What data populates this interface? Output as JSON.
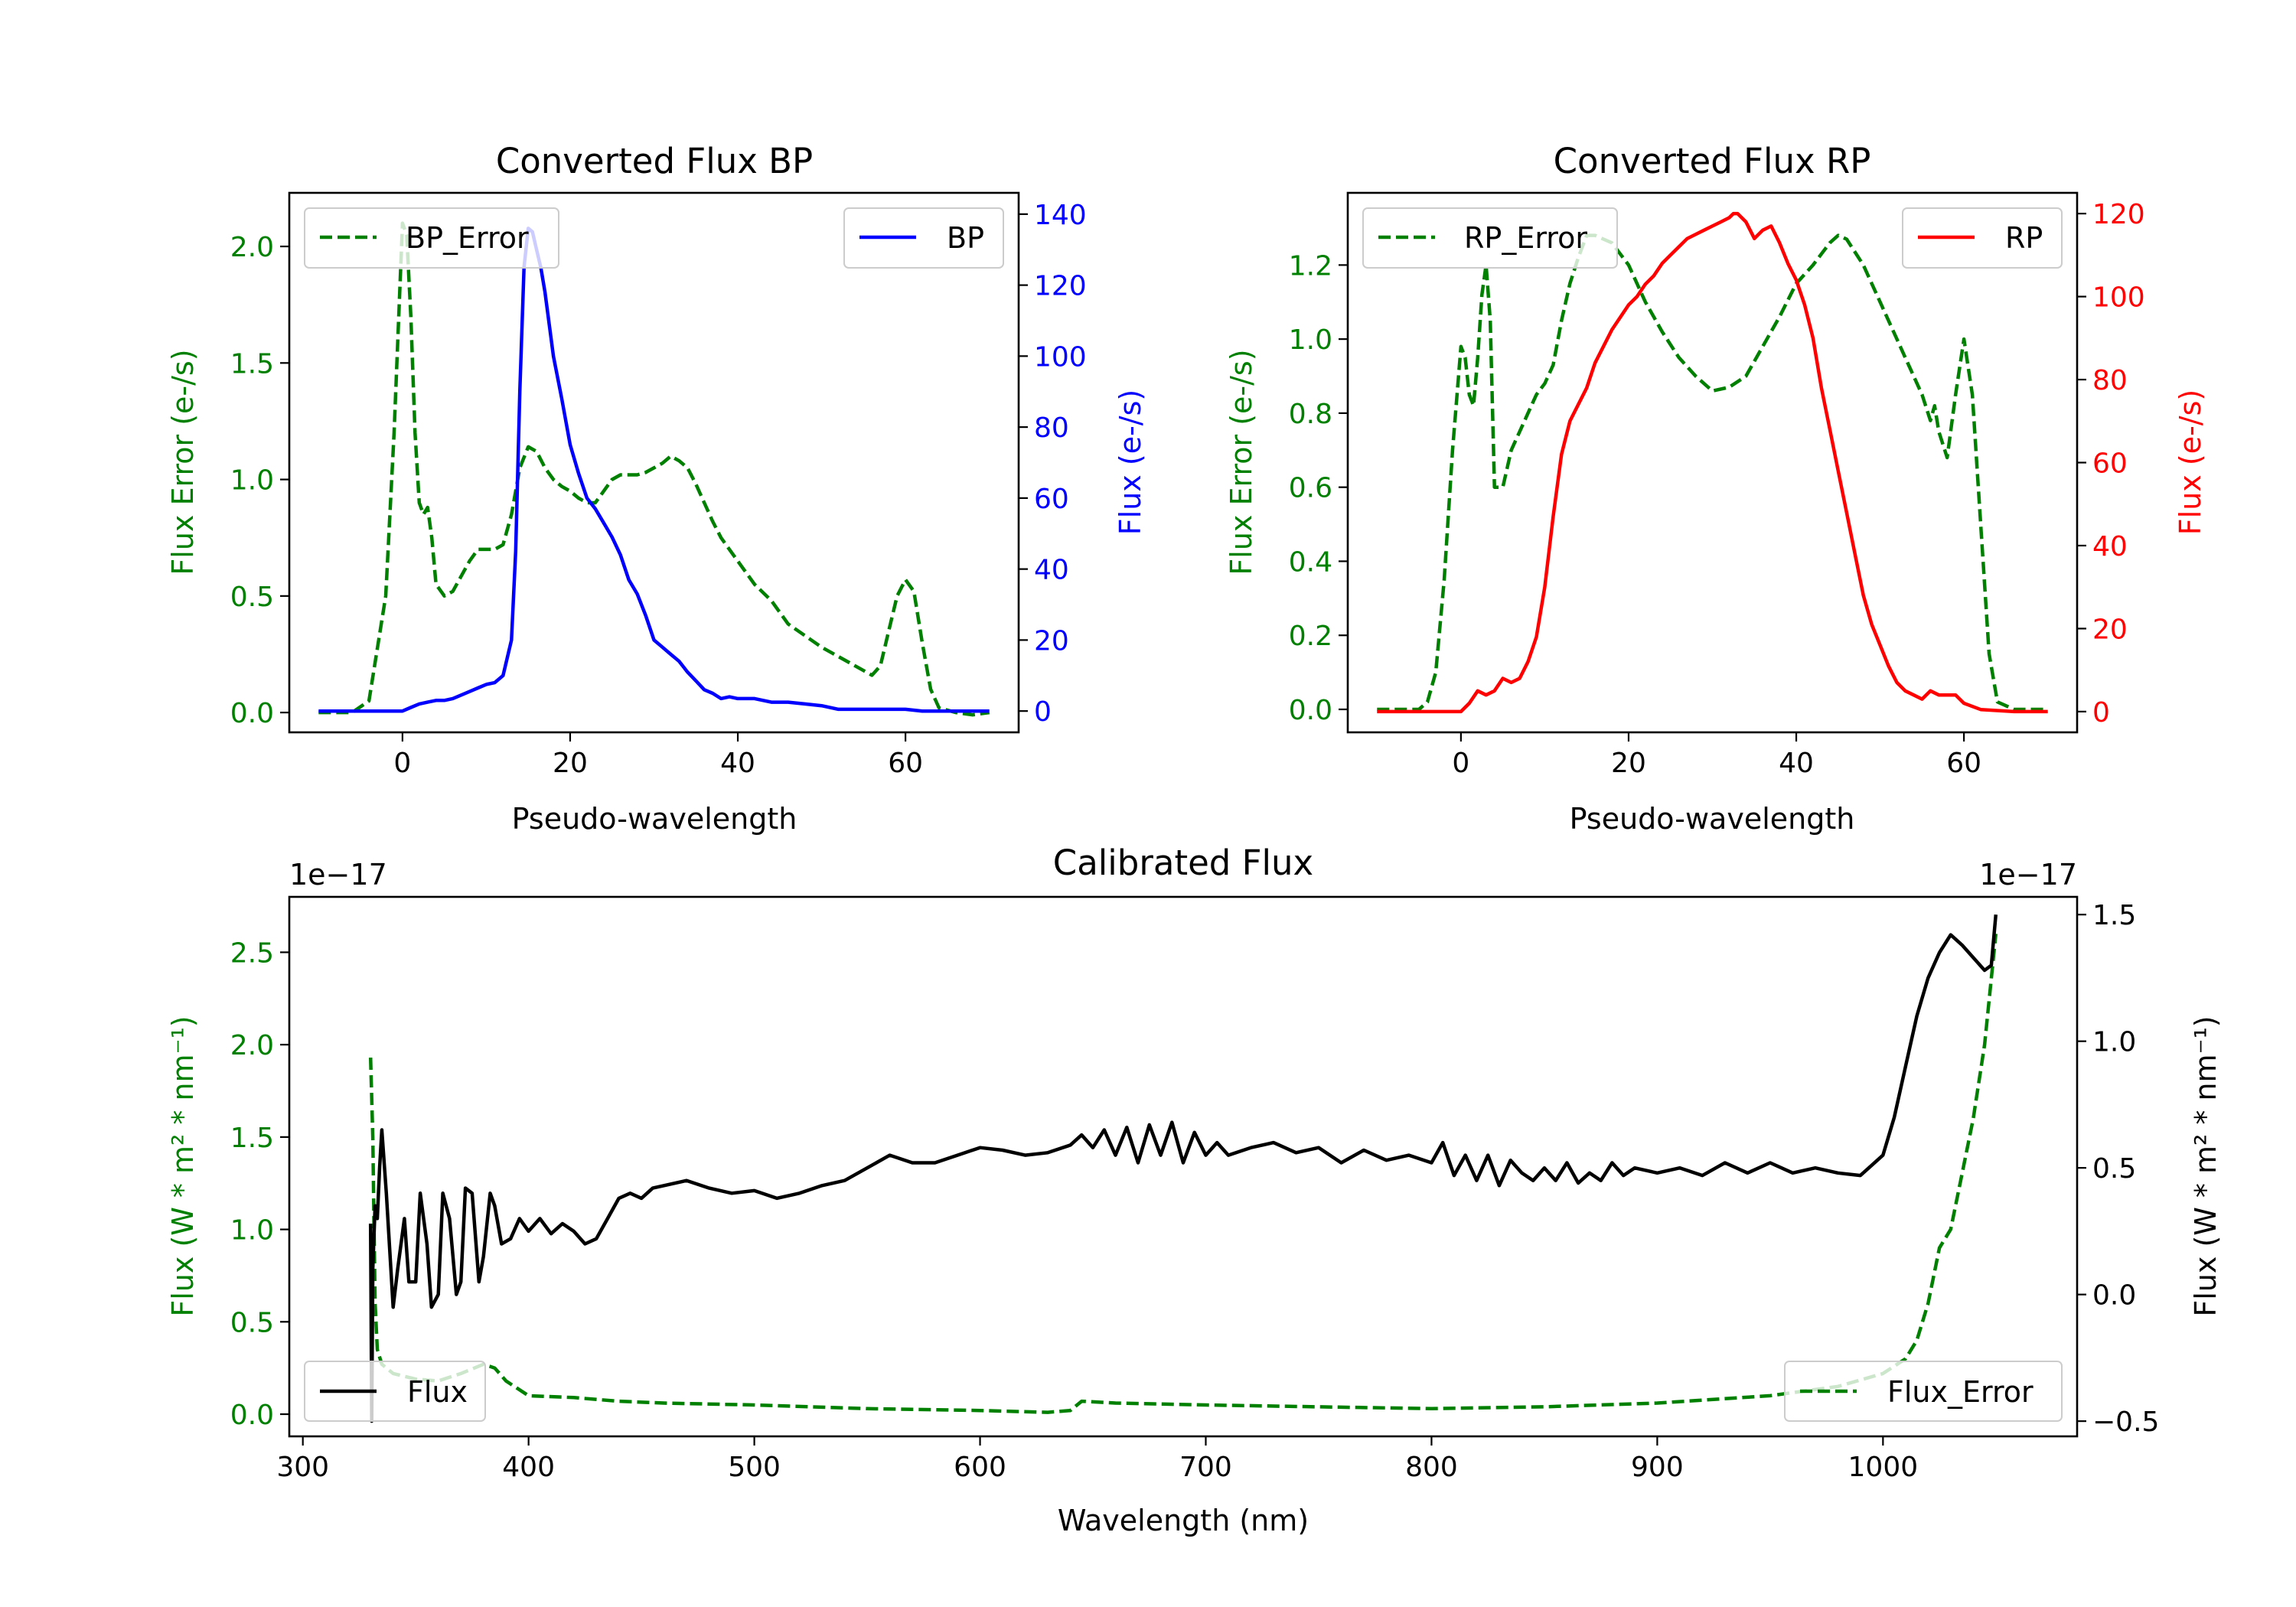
{
  "figure": {
    "colors": {
      "green": "#008000",
      "blue": "#0000ff",
      "red": "#ff0000",
      "black": "#000000"
    }
  },
  "chart_data": [
    {
      "id": "bp",
      "type": "line",
      "title": "Converted Flux BP",
      "xlabel": "Pseudo-wavelength",
      "xlim": [
        -13.5,
        73.5
      ],
      "xticks": [
        0,
        20,
        40,
        60
      ],
      "left_axis": {
        "label": "Flux Error (e-/s)",
        "color": "#008000",
        "ylim": [
          -0.085,
          2.23
        ],
        "ticks": [
          0.0,
          0.5,
          1.0,
          1.5,
          2.0
        ],
        "tick_labels": [
          "0.0",
          "0.5",
          "1.0",
          "1.5",
          "2.0"
        ]
      },
      "right_axis": {
        "label": "Flux (e-/s)",
        "color": "#0000ff",
        "ylim": [
          -6,
          146
        ],
        "ticks": [
          0,
          20,
          40,
          60,
          80,
          100,
          120,
          140
        ],
        "tick_labels": [
          "0",
          "20",
          "40",
          "60",
          "80",
          "100",
          "120",
          "140"
        ]
      },
      "series": [
        {
          "name": "BP_Error",
          "axis": "left",
          "color": "#008000",
          "dash": true,
          "x": [
            -10,
            -6,
            -4,
            -2,
            -1,
            0,
            0.5,
            1,
            1.5,
            2,
            2.5,
            3,
            3.5,
            4,
            5,
            6,
            8,
            9,
            10,
            11,
            12,
            13,
            14,
            15,
            16,
            17,
            18,
            19,
            20,
            21,
            22,
            23,
            24,
            25,
            26,
            27,
            28,
            29,
            30,
            31,
            32,
            33,
            34,
            35,
            36,
            37,
            38,
            40,
            42,
            44,
            46,
            48,
            50,
            52,
            54,
            56,
            57,
            58,
            59,
            60,
            61,
            62,
            63,
            64,
            66,
            68,
            70
          ],
          "y": [
            0.0,
            0.0,
            0.05,
            0.5,
            1.2,
            2.1,
            2.05,
            1.7,
            1.2,
            0.9,
            0.85,
            0.88,
            0.75,
            0.55,
            0.5,
            0.52,
            0.65,
            0.7,
            0.7,
            0.7,
            0.72,
            0.85,
            1.05,
            1.14,
            1.12,
            1.05,
            1.0,
            0.97,
            0.95,
            0.92,
            0.9,
            0.9,
            0.95,
            1.0,
            1.02,
            1.02,
            1.02,
            1.03,
            1.05,
            1.07,
            1.1,
            1.08,
            1.05,
            0.98,
            0.9,
            0.82,
            0.75,
            0.65,
            0.55,
            0.48,
            0.38,
            0.33,
            0.28,
            0.24,
            0.2,
            0.16,
            0.2,
            0.35,
            0.5,
            0.57,
            0.52,
            0.3,
            0.1,
            0.02,
            0.0,
            -0.01,
            0.0
          ]
        },
        {
          "name": "BP",
          "axis": "right",
          "color": "#0000ff",
          "dash": false,
          "x": [
            -10,
            -2,
            0,
            1,
            2,
            3,
            4,
            5,
            6,
            7,
            8,
            9,
            10,
            11,
            12,
            13,
            13.5,
            14,
            14.5,
            15,
            15.5,
            16,
            16.5,
            17,
            18,
            19,
            20,
            21,
            22,
            23,
            24,
            25,
            26,
            27,
            28,
            29,
            30,
            31,
            32,
            33,
            34,
            35,
            36,
            37,
            38,
            39,
            40,
            42,
            44,
            46,
            48,
            50,
            52,
            55,
            58,
            60,
            62,
            65,
            70
          ],
          "y": [
            0,
            0,
            0,
            1,
            2,
            2.5,
            3,
            3,
            3.5,
            4.5,
            5.5,
            6.5,
            7.5,
            8,
            10,
            20,
            45,
            90,
            125,
            136,
            135,
            130,
            125,
            118,
            100,
            88,
            75,
            67,
            60,
            57,
            53,
            49,
            44,
            37,
            33,
            27,
            20,
            18,
            16,
            14,
            11,
            8.5,
            6,
            5,
            3.5,
            4,
            3.5,
            3.5,
            2.5,
            2.5,
            2,
            1.5,
            0.5,
            0.5,
            0.5,
            0.5,
            0,
            0,
            0
          ]
        }
      ],
      "legend": [
        {
          "label": "BP_Error",
          "placement": "upper-left"
        },
        {
          "label": "BP",
          "placement": "upper-right"
        }
      ]
    },
    {
      "id": "rp",
      "type": "line",
      "title": "Converted Flux RP",
      "xlabel": "Pseudo-wavelength",
      "xlim": [
        -13.5,
        73.5
      ],
      "xticks": [
        0,
        20,
        40,
        60
      ],
      "left_axis": {
        "label": "Flux Error (e-/s)",
        "color": "#008000",
        "ylim": [
          -0.062,
          1.395
        ],
        "ticks": [
          0.0,
          0.2,
          0.4,
          0.6,
          0.8,
          1.0,
          1.2
        ],
        "tick_labels": [
          "0.0",
          "0.2",
          "0.4",
          "0.6",
          "0.8",
          "1.0",
          "1.2"
        ]
      },
      "right_axis": {
        "label": "Flux (e-/s)",
        "color": "#ff0000",
        "ylim": [
          -5,
          125
        ],
        "ticks": [
          0,
          20,
          40,
          60,
          80,
          100,
          120
        ],
        "tick_labels": [
          "0",
          "20",
          "40",
          "60",
          "80",
          "100",
          "120"
        ]
      },
      "series": [
        {
          "name": "RP_Error",
          "axis": "left",
          "color": "#008000",
          "dash": true,
          "x": [
            -10,
            -5,
            -4,
            -3,
            -2,
            -1,
            0,
            0.5,
            1,
            1.5,
            2,
            2.5,
            3,
            3.5,
            4,
            5,
            6,
            7,
            8,
            9,
            10,
            11,
            12,
            13,
            14,
            15,
            16,
            17,
            18,
            19,
            20,
            22,
            24,
            26,
            28,
            30,
            32,
            34,
            36,
            38,
            40,
            42,
            43,
            44,
            45,
            46,
            48,
            50,
            52,
            54,
            55,
            56,
            56.5,
            57,
            58,
            59,
            60,
            61,
            62,
            63,
            64,
            66,
            70
          ],
          "y": [
            0.0,
            0.0,
            0.02,
            0.1,
            0.35,
            0.7,
            0.98,
            0.95,
            0.85,
            0.82,
            0.95,
            1.12,
            1.2,
            1.05,
            0.6,
            0.6,
            0.7,
            0.75,
            0.8,
            0.85,
            0.88,
            0.93,
            1.05,
            1.15,
            1.22,
            1.28,
            1.28,
            1.27,
            1.26,
            1.23,
            1.2,
            1.1,
            1.02,
            0.95,
            0.9,
            0.86,
            0.87,
            0.9,
            0.98,
            1.06,
            1.15,
            1.2,
            1.23,
            1.26,
            1.28,
            1.27,
            1.2,
            1.1,
            1.0,
            0.9,
            0.85,
            0.78,
            0.82,
            0.75,
            0.68,
            0.85,
            1.0,
            0.85,
            0.5,
            0.15,
            0.02,
            0.0,
            0.0
          ]
        },
        {
          "name": "RP",
          "axis": "right",
          "color": "#ff0000",
          "dash": false,
          "x": [
            -10,
            -2,
            0,
            1,
            2,
            3,
            4,
            5,
            6,
            7,
            8,
            9,
            10,
            11,
            12,
            13,
            14,
            15,
            16,
            17,
            18,
            19,
            20,
            21,
            22,
            23,
            24,
            25,
            26,
            27,
            28,
            29,
            30,
            31,
            32,
            32.5,
            33,
            34,
            35,
            36,
            37,
            38,
            39,
            40,
            41,
            42,
            43,
            44,
            45,
            46,
            47,
            48,
            49,
            50,
            51,
            52,
            53,
            54,
            55,
            56,
            57,
            58,
            59,
            60,
            62,
            66,
            70
          ],
          "y": [
            0,
            0,
            0,
            2,
            5,
            4,
            5,
            8,
            7,
            8,
            12,
            18,
            30,
            47,
            62,
            70,
            74,
            78,
            84,
            88,
            92,
            95,
            98,
            100,
            103,
            105,
            108,
            110,
            112,
            114,
            115,
            116,
            117,
            118,
            119,
            120,
            120,
            118,
            114,
            116,
            117,
            113,
            108,
            104,
            98,
            90,
            78,
            68,
            58,
            48,
            38,
            28,
            21,
            16,
            11,
            7,
            5,
            4,
            3,
            5,
            4,
            4,
            4,
            2,
            0.5,
            0,
            0
          ]
        }
      ],
      "legend": [
        {
          "label": "RP_Error",
          "placement": "upper-left"
        },
        {
          "label": "RP",
          "placement": "upper-right"
        }
      ]
    },
    {
      "id": "cal",
      "type": "line",
      "title": "Calibrated Flux",
      "xlabel": "Wavelength (nm)",
      "xlim": [
        294,
        1086
      ],
      "xticks": [
        300,
        400,
        500,
        600,
        700,
        800,
        900,
        1000
      ],
      "left_axis": {
        "label": "Flux (W * m² * nm⁻¹)",
        "color": "#008000",
        "offset_text": "1e−17",
        "ylim": [
          -0.12,
          2.8
        ],
        "ticks": [
          0.0,
          0.5,
          1.0,
          1.5,
          2.0,
          2.5
        ],
        "tick_labels": [
          "0.0",
          "0.5",
          "1.0",
          "1.5",
          "2.0",
          "2.5"
        ]
      },
      "right_axis": {
        "label": "Flux (W * m² * nm⁻¹)",
        "color": "#000000",
        "offset_text": "1e−17",
        "ylim": [
          -0.56,
          1.57
        ],
        "ticks": [
          -0.5,
          0.0,
          0.5,
          1.0,
          1.5
        ],
        "tick_labels": [
          "−0.5",
          "0.0",
          "0.5",
          "1.0",
          "1.5"
        ]
      },
      "series": [
        {
          "name": "Flux_Error",
          "axis": "left",
          "color": "#008000",
          "dash": true,
          "x": [
            330,
            331,
            332,
            333,
            335,
            340,
            350,
            360,
            370,
            380,
            385,
            390,
            400,
            420,
            440,
            460,
            500,
            550,
            600,
            630,
            640,
            645,
            660,
            700,
            750,
            800,
            850,
            900,
            950,
            980,
            1000,
            1010,
            1015,
            1020,
            1025,
            1030,
            1035,
            1040,
            1045,
            1050
          ],
          "y": [
            1.93,
            1.5,
            0.6,
            0.35,
            0.27,
            0.22,
            0.19,
            0.18,
            0.22,
            0.27,
            0.25,
            0.18,
            0.1,
            0.09,
            0.07,
            0.06,
            0.05,
            0.03,
            0.02,
            0.01,
            0.02,
            0.07,
            0.06,
            0.05,
            0.04,
            0.03,
            0.04,
            0.06,
            0.1,
            0.15,
            0.22,
            0.3,
            0.4,
            0.6,
            0.9,
            1.0,
            1.3,
            1.6,
            2.0,
            2.6
          ]
        },
        {
          "name": "Flux",
          "axis": "right",
          "color": "#000000",
          "dash": false,
          "x": [
            330,
            330.5,
            331,
            332,
            333,
            334,
            335,
            337,
            340,
            342,
            345,
            347,
            350,
            352,
            355,
            357,
            360,
            362,
            365,
            368,
            370,
            372,
            375,
            378,
            380,
            383,
            385,
            388,
            392,
            396,
            400,
            405,
            410,
            415,
            420,
            425,
            430,
            435,
            440,
            445,
            450,
            455,
            460,
            470,
            480,
            490,
            500,
            510,
            520,
            530,
            540,
            550,
            560,
            570,
            580,
            590,
            600,
            610,
            620,
            630,
            640,
            645,
            650,
            655,
            660,
            665,
            670,
            675,
            680,
            685,
            690,
            695,
            700,
            705,
            710,
            720,
            730,
            740,
            750,
            760,
            770,
            780,
            790,
            800,
            805,
            810,
            815,
            820,
            825,
            830,
            835,
            840,
            845,
            850,
            855,
            860,
            865,
            870,
            875,
            880,
            885,
            890,
            900,
            910,
            920,
            930,
            940,
            950,
            960,
            970,
            980,
            990,
            1000,
            1005,
            1010,
            1015,
            1020,
            1025,
            1030,
            1035,
            1040,
            1045,
            1048,
            1050
          ],
          "y": [
            0.28,
            -0.5,
            0.1,
            0.35,
            0.3,
            0.5,
            0.65,
            0.4,
            -0.05,
            0.1,
            0.3,
            0.05,
            0.05,
            0.4,
            0.2,
            -0.05,
            0.0,
            0.4,
            0.3,
            0.0,
            0.05,
            0.42,
            0.4,
            0.05,
            0.15,
            0.4,
            0.35,
            0.2,
            0.22,
            0.3,
            0.25,
            0.3,
            0.24,
            0.28,
            0.25,
            0.2,
            0.22,
            0.3,
            0.38,
            0.4,
            0.38,
            0.42,
            0.43,
            0.45,
            0.42,
            0.4,
            0.41,
            0.38,
            0.4,
            0.43,
            0.45,
            0.5,
            0.55,
            0.52,
            0.52,
            0.55,
            0.58,
            0.57,
            0.55,
            0.56,
            0.59,
            0.63,
            0.58,
            0.65,
            0.55,
            0.66,
            0.52,
            0.67,
            0.55,
            0.68,
            0.52,
            0.64,
            0.55,
            0.6,
            0.55,
            0.58,
            0.6,
            0.56,
            0.58,
            0.52,
            0.57,
            0.53,
            0.55,
            0.52,
            0.6,
            0.47,
            0.55,
            0.45,
            0.55,
            0.43,
            0.53,
            0.48,
            0.45,
            0.5,
            0.45,
            0.52,
            0.44,
            0.48,
            0.45,
            0.52,
            0.47,
            0.5,
            0.48,
            0.5,
            0.47,
            0.52,
            0.48,
            0.52,
            0.48,
            0.5,
            0.48,
            0.47,
            0.55,
            0.7,
            0.9,
            1.1,
            1.25,
            1.35,
            1.42,
            1.38,
            1.33,
            1.28,
            1.3,
            1.5
          ]
        }
      ],
      "legend": [
        {
          "label": "Flux",
          "placement": "lower-left"
        },
        {
          "label": "Flux_Error",
          "placement": "lower-right"
        }
      ]
    }
  ]
}
